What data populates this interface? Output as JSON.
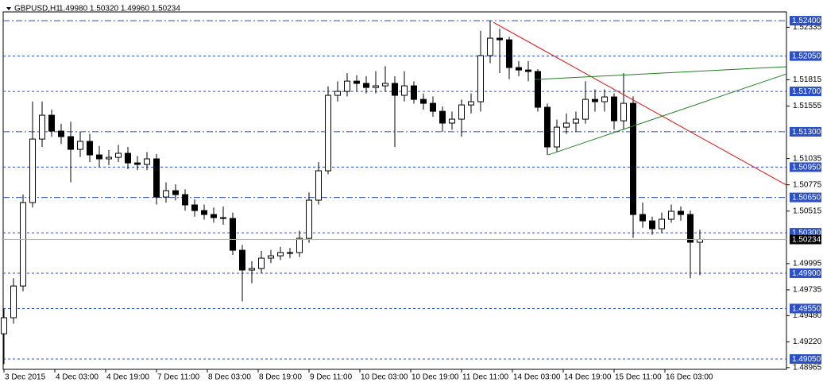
{
  "chart_data": {
    "type": "candlestick",
    "title": "GBPUSD,H1",
    "quote": "1.49980 1.50320 1.49960 1.50234",
    "x": [
      0,
      3,
      6,
      9,
      12,
      15,
      18,
      21,
      24,
      27,
      30,
      33,
      36,
      39,
      42,
      45,
      48,
      51,
      54,
      57,
      60,
      63,
      66,
      69,
      72,
      75,
      78,
      81,
      84,
      87,
      90,
      93,
      96,
      99,
      102,
      105,
      108,
      111,
      114,
      117,
      120,
      123,
      126,
      129,
      132,
      135,
      138,
      141,
      144,
      147,
      150,
      153,
      156,
      159,
      162,
      165,
      168,
      171,
      174,
      177,
      180,
      183,
      186,
      189,
      192,
      195,
      198,
      201,
      204,
      207,
      210,
      213,
      216,
      219
    ],
    "open": [
      1.493,
      1.49459,
      1.49773,
      1.50599,
      1.51228,
      1.51464,
      1.51307,
      1.51252,
      1.51126,
      1.51205,
      1.51071,
      1.51032,
      1.51047,
      1.51087,
      1.50992,
      1.50977,
      1.51032,
      1.50654,
      1.50717,
      1.50678,
      1.50576,
      1.5052,
      1.50481,
      1.5045,
      1.50442,
      1.50127,
      1.49931,
      1.49946,
      1.50049,
      1.50072,
      1.50104,
      1.50104,
      1.50245,
      1.50623,
      1.50914,
      1.51661,
      1.517,
      1.51802,
      1.51779,
      1.51739,
      1.51755,
      1.51779,
      1.51661,
      1.51755,
      1.51621,
      1.51582,
      1.51503,
      1.51386,
      1.51425,
      1.51566,
      1.51598,
      1.52054,
      1.52227,
      1.52211,
      1.51936,
      1.51912,
      1.51897,
      1.51543,
      1.5115,
      1.51346,
      1.51386,
      1.51425,
      1.51621,
      1.51598,
      1.51645,
      1.51409,
      1.51582,
      1.50481,
      1.50418,
      1.5034,
      1.50434,
      1.50513,
      1.50481,
      1.50206
    ],
    "high": [
      1.4955,
      1.4985,
      1.5068,
      1.516,
      1.516,
      1.5152,
      1.5138,
      1.514,
      1.513,
      1.5128,
      1.5116,
      1.5112,
      1.5117,
      1.5115,
      1.5106,
      1.511,
      1.5108,
      1.508,
      1.5078,
      1.5073,
      1.5063,
      1.5058,
      1.5055,
      1.5056,
      1.505,
      1.5018,
      1.5002,
      1.5012,
      1.5013,
      1.5016,
      1.5015,
      1.5032,
      1.507,
      1.51,
      1.5175,
      1.518,
      1.5188,
      1.5186,
      1.5185,
      1.519,
      1.5195,
      1.5185,
      1.519,
      1.518,
      1.5168,
      1.5165,
      1.5155,
      1.515,
      1.5162,
      1.5168,
      1.523,
      1.524,
      1.5232,
      1.5224,
      1.52,
      1.52,
      1.5192,
      1.5158,
      1.5142,
      1.5148,
      1.515,
      1.518,
      1.5172,
      1.5172,
      1.5168,
      1.5188,
      1.5165,
      1.506,
      1.5046,
      1.505,
      1.5058,
      1.5056,
      1.5052,
      1.5033
    ],
    "low": [
      1.49,
      1.494,
      1.4972,
      1.5055,
      1.5115,
      1.5125,
      1.5118,
      1.508,
      1.5105,
      1.51,
      1.5095,
      1.5097,
      1.51,
      1.5093,
      1.5092,
      1.5092,
      1.5058,
      1.506,
      1.5062,
      1.5052,
      1.5046,
      1.5043,
      1.504,
      1.5038,
      1.5008,
      1.4962,
      1.498,
      1.499,
      1.5,
      1.5003,
      1.5005,
      1.5006,
      1.502,
      1.5058,
      1.5088,
      1.516,
      1.5165,
      1.517,
      1.5168,
      1.5168,
      1.517,
      1.5115,
      1.516,
      1.5158,
      1.5152,
      1.5145,
      1.513,
      1.5132,
      1.5125,
      1.5148,
      1.515,
      1.5198,
      1.5188,
      1.5182,
      1.5185,
      1.518,
      1.515,
      1.5107,
      1.511,
      1.5128,
      1.513,
      1.5138,
      1.515,
      1.515,
      1.5132,
      1.5132,
      1.5025,
      1.5035,
      1.5028,
      1.503,
      1.504,
      1.5042,
      1.4985,
      1.4988
    ],
    "close": [
      1.49459,
      1.49773,
      1.50599,
      1.51228,
      1.51464,
      1.51307,
      1.51252,
      1.51126,
      1.51205,
      1.51071,
      1.51032,
      1.51047,
      1.51087,
      1.50992,
      1.50977,
      1.51032,
      1.50654,
      1.50717,
      1.50678,
      1.50576,
      1.5052,
      1.50481,
      1.5045,
      1.50442,
      1.50127,
      1.49931,
      1.49946,
      1.50049,
      1.50072,
      1.50104,
      1.50104,
      1.50245,
      1.50623,
      1.50914,
      1.51661,
      1.517,
      1.51802,
      1.51779,
      1.51739,
      1.51755,
      1.51779,
      1.51661,
      1.51755,
      1.51621,
      1.51582,
      1.51503,
      1.51386,
      1.51425,
      1.51566,
      1.51598,
      1.52054,
      1.52227,
      1.52211,
      1.51936,
      1.51912,
      1.51897,
      1.51543,
      1.5115,
      1.51346,
      1.51386,
      1.51425,
      1.51621,
      1.51598,
      1.51645,
      1.51409,
      1.51582,
      1.50481,
      1.50418,
      1.5034,
      1.50434,
      1.50513,
      1.50481,
      1.50206,
      1.50234
    ],
    "xlim": [
      -0.25,
      246.25
    ],
    "ylim": [
      1.48948,
      1.52487
    ],
    "xticks": [
      {
        "value": 0,
        "label": "3 Dec 2015"
      },
      {
        "value": 16,
        "label": "4 Dec 03:00"
      },
      {
        "value": 32,
        "label": "4 Dec 19:00"
      },
      {
        "value": 48,
        "label": "7 Dec 11:00"
      },
      {
        "value": 64,
        "label": "8 Dec 03:00"
      },
      {
        "value": 80,
        "label": "8 Dec 19:00"
      },
      {
        "value": 96,
        "label": "9 Dec 11:00"
      },
      {
        "value": 112,
        "label": "10 Dec 03:00"
      },
      {
        "value": 128,
        "label": "10 Dec 19:00"
      },
      {
        "value": 144,
        "label": "11 Dec 11:00"
      },
      {
        "value": 160,
        "label": "14 Dec 03:00"
      },
      {
        "value": 176,
        "label": "14 Dec 19:00"
      },
      {
        "value": 192,
        "label": "15 Dec 11:00"
      },
      {
        "value": 208,
        "label": "16 Dec 03:00"
      }
    ],
    "yticks": [
      1.52335,
      1.51815,
      1.51555,
      1.51035,
      1.50775,
      1.50515,
      1.49995,
      1.49735,
      {
        "value": 1.4948,
        "label": "1.49480"
      },
      {
        "value": 1.4922,
        "label": "1.49220"
      },
      1.48965
    ],
    "levels": [
      {
        "value": 1.524,
        "label": "1.52400",
        "dash": "dashdot"
      },
      {
        "value": 1.5205,
        "label": "1.52050",
        "dash": "dash"
      },
      {
        "value": 1.517,
        "label": "1.51700",
        "dash": "dash"
      },
      {
        "value": 1.513,
        "label": "1.51300",
        "dash": "dashdot"
      },
      {
        "value": 1.5095,
        "label": "1.50950",
        "dash": "dash"
      },
      {
        "value": 1.5065,
        "label": "1.50650",
        "dash": "dashdot"
      },
      {
        "value": 1.503,
        "label": "1.50300",
        "dash": "dash"
      },
      {
        "value": 1.499,
        "label": "1.49900",
        "dash": "dash"
      },
      {
        "value": 1.4955,
        "label": "1.49550",
        "dash": "dash"
      },
      {
        "value": 1.4905,
        "label": "1.49050",
        "dash": "dash"
      }
    ],
    "level_color": "#2b4fc4",
    "current_price": {
      "value": 1.50234,
      "label": "1.50234"
    },
    "trendlines": [
      {
        "color": "#e01010",
        "x": [
          154,
          246.25
        ],
        "y": [
          1.52384,
          1.50772
        ]
      },
      {
        "color": "#208020",
        "x": [
          167,
          246.25
        ],
        "y": [
          1.51818,
          1.51944
        ]
      },
      {
        "color": "#208020",
        "x": [
          171.25,
          246.25
        ],
        "y": [
          1.51071,
          1.51873
        ]
      }
    ],
    "up_color": "#ffffff",
    "down_color": "#000000"
  }
}
